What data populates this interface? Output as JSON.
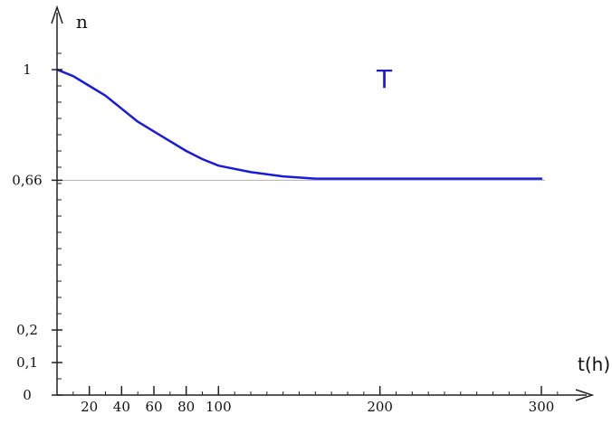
{
  "chart_data": {
    "type": "line",
    "title": "",
    "xlabel": "t(h)",
    "ylabel": "n",
    "curve_label": "T",
    "xlim": [
      0,
      330
    ],
    "ylim": [
      0,
      1.1
    ],
    "x_ticks": [
      {
        "value": 20,
        "label": "20"
      },
      {
        "value": 40,
        "label": "40"
      },
      {
        "value": 60,
        "label": "60"
      },
      {
        "value": 80,
        "label": "80"
      },
      {
        "value": 100,
        "label": "100"
      },
      {
        "value": 200,
        "label": "200"
      },
      {
        "value": 300,
        "label": "300"
      }
    ],
    "y_ticks": [
      {
        "value": 0,
        "label": "0"
      },
      {
        "value": 0.1,
        "label": "0,1"
      },
      {
        "value": 0.2,
        "label": "0,2"
      },
      {
        "value": 0.66,
        "label": "0,66"
      },
      {
        "value": 1,
        "label": "1"
      }
    ],
    "reference_line": {
      "y": 0.66,
      "color": "#b0b0b0"
    },
    "series": [
      {
        "color": "#1a1adf",
        "x": [
          0,
          10,
          20,
          30,
          40,
          50,
          60,
          70,
          80,
          90,
          100,
          120,
          140,
          160,
          200,
          250,
          300
        ],
        "y": [
          1.0,
          0.98,
          0.95,
          0.92,
          0.88,
          0.84,
          0.81,
          0.78,
          0.75,
          0.725,
          0.705,
          0.685,
          0.672,
          0.665,
          0.665,
          0.665,
          0.665
        ]
      }
    ],
    "grid": false,
    "legend": "none",
    "axis_color": "#222222",
    "label_color": "#111111",
    "curve_label_color": "#1a1adf"
  }
}
